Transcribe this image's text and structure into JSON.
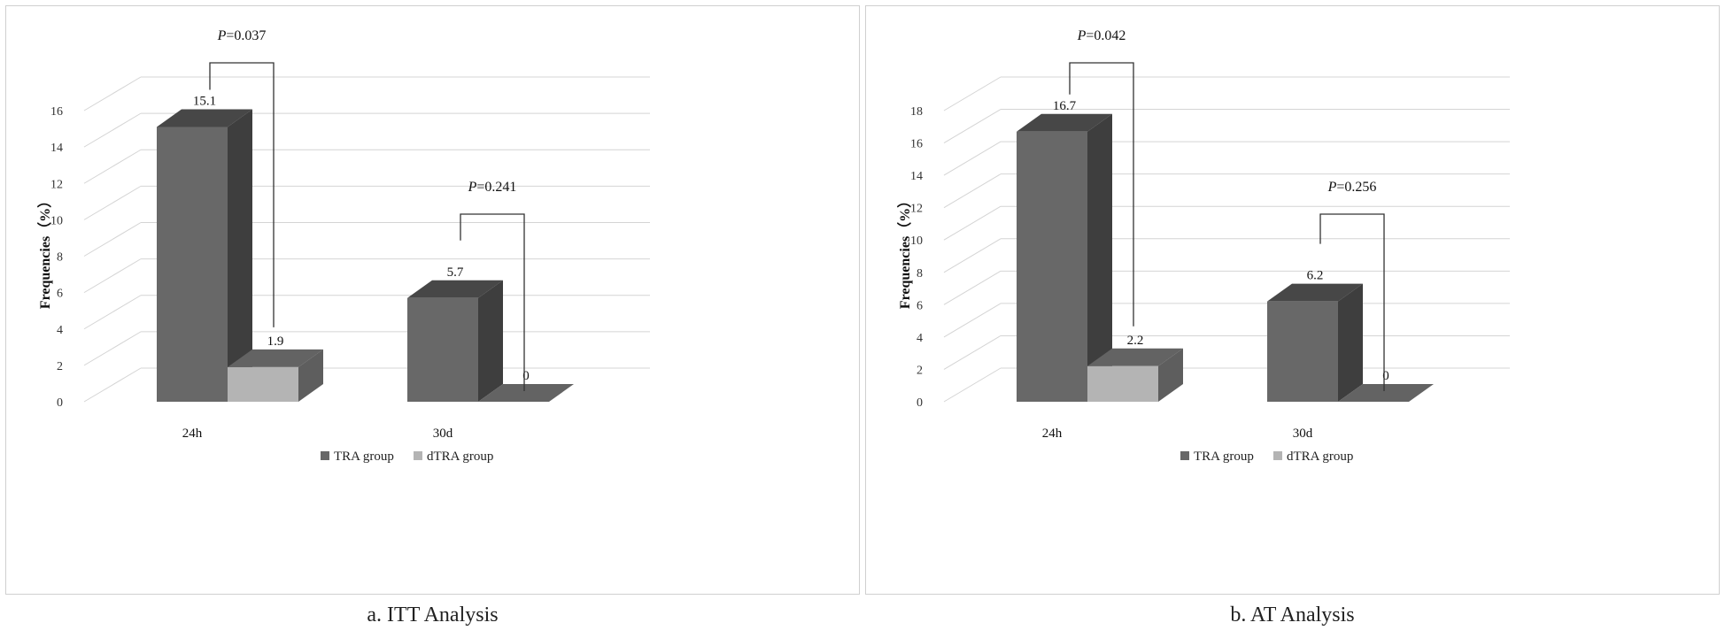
{
  "chart_data": [
    {
      "type": "bar",
      "caption": "a. ITT Analysis",
      "ylabel": "Frequencies（%）",
      "ylim": [
        0,
        16
      ],
      "yticks": [
        0,
        2,
        4,
        6,
        8,
        10,
        12,
        14,
        16
      ],
      "categories": [
        "24h",
        "30d"
      ],
      "series": [
        {
          "name": "TRA group",
          "values": [
            15.1,
            5.7
          ],
          "color": "#686868"
        },
        {
          "name": "dTRA group",
          "values": [
            1.9,
            0
          ],
          "color": "#b4b4b4"
        }
      ],
      "annotations": [
        {
          "category": "24h",
          "p_prefix": "P",
          "p_value": "=0.037"
        },
        {
          "category": "30d",
          "p_prefix": "P",
          "p_value": "=0.241"
        }
      ],
      "grid": true,
      "legend": "bottom"
    },
    {
      "type": "bar",
      "caption": "b. AT Analysis",
      "ylabel": "Frequencies（%）",
      "ylim": [
        0,
        18
      ],
      "yticks": [
        0,
        2,
        4,
        6,
        8,
        10,
        12,
        14,
        16,
        18
      ],
      "categories": [
        "24h",
        "30d"
      ],
      "series": [
        {
          "name": "TRA group",
          "values": [
            16.7,
            6.2
          ],
          "color": "#686868"
        },
        {
          "name": "dTRA group",
          "values": [
            2.2,
            0
          ],
          "color": "#b4b4b4"
        }
      ],
      "annotations": [
        {
          "category": "24h",
          "p_prefix": "P",
          "p_value": "=0.042"
        },
        {
          "category": "30d",
          "p_prefix": "P",
          "p_value": "=0.256"
        }
      ],
      "grid": true,
      "legend": "bottom"
    }
  ]
}
